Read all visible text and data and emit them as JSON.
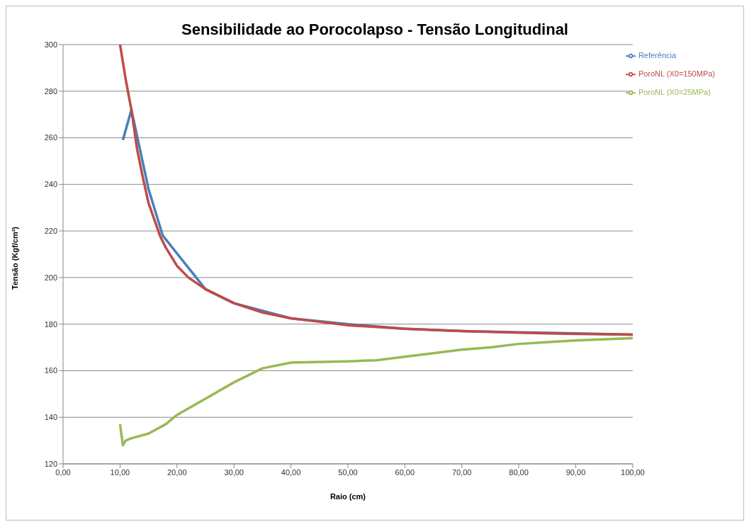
{
  "chart_data": {
    "type": "line",
    "title": "Sensibilidade ao Porocolapso - Tensão Longitudinal",
    "xlabel": "Raio (cm)",
    "ylabel": "Tensão (Kgf/cm²)",
    "xlim": [
      0,
      100
    ],
    "ylim": [
      120,
      300
    ],
    "xticks": [
      {
        "value": 0,
        "label": "0,00"
      },
      {
        "value": 10,
        "label": "10,00"
      },
      {
        "value": 20,
        "label": "20,00"
      },
      {
        "value": 30,
        "label": "30,00"
      },
      {
        "value": 40,
        "label": "40,00"
      },
      {
        "value": 50,
        "label": "50,00"
      },
      {
        "value": 60,
        "label": "60,00"
      },
      {
        "value": 70,
        "label": "70,00"
      },
      {
        "value": 80,
        "label": "80,00"
      },
      {
        "value": 90,
        "label": "90,00"
      },
      {
        "value": 100,
        "label": "100,00"
      }
    ],
    "yticks": [
      120,
      140,
      160,
      180,
      200,
      220,
      240,
      260,
      280,
      300
    ],
    "grid": "y",
    "legend": "top right",
    "marker": "none",
    "line_style": "solid",
    "series": [
      {
        "name": "Referência",
        "color": "#4a7ebb",
        "x": [
          10.5,
          12,
          15,
          17.5,
          25,
          30,
          40,
          50,
          60,
          70,
          80,
          90,
          100
        ],
        "values": [
          259,
          272,
          238,
          218,
          195,
          189,
          182.5,
          180,
          178,
          177,
          176.5,
          176,
          175.5
        ]
      },
      {
        "name": "PoroNL (X0=150MPa)",
        "color": "#be4b48",
        "x": [
          10,
          11,
          12,
          13,
          14,
          15,
          16,
          17,
          18,
          20,
          22,
          25,
          30,
          35,
          40,
          45,
          50,
          60,
          70,
          80,
          90,
          100
        ],
        "values": [
          300,
          285,
          272,
          255,
          243,
          232,
          225,
          218,
          213,
          205,
          200,
          195,
          189,
          185,
          182.5,
          181,
          179.5,
          178,
          177,
          176.3,
          175.8,
          175.5
        ]
      },
      {
        "name": "PoroNL (X0=25MPa)",
        "color": "#98b954",
        "x": [
          10,
          10.5,
          11,
          12,
          15,
          18,
          20,
          25,
          30,
          35,
          40,
          50,
          55,
          60,
          65,
          70,
          75,
          80,
          90,
          100
        ],
        "values": [
          137,
          128,
          130,
          131,
          133,
          137,
          141,
          148,
          155,
          161,
          163.5,
          164,
          164.5,
          166,
          167.5,
          169,
          170,
          171.5,
          173,
          174
        ]
      }
    ]
  }
}
